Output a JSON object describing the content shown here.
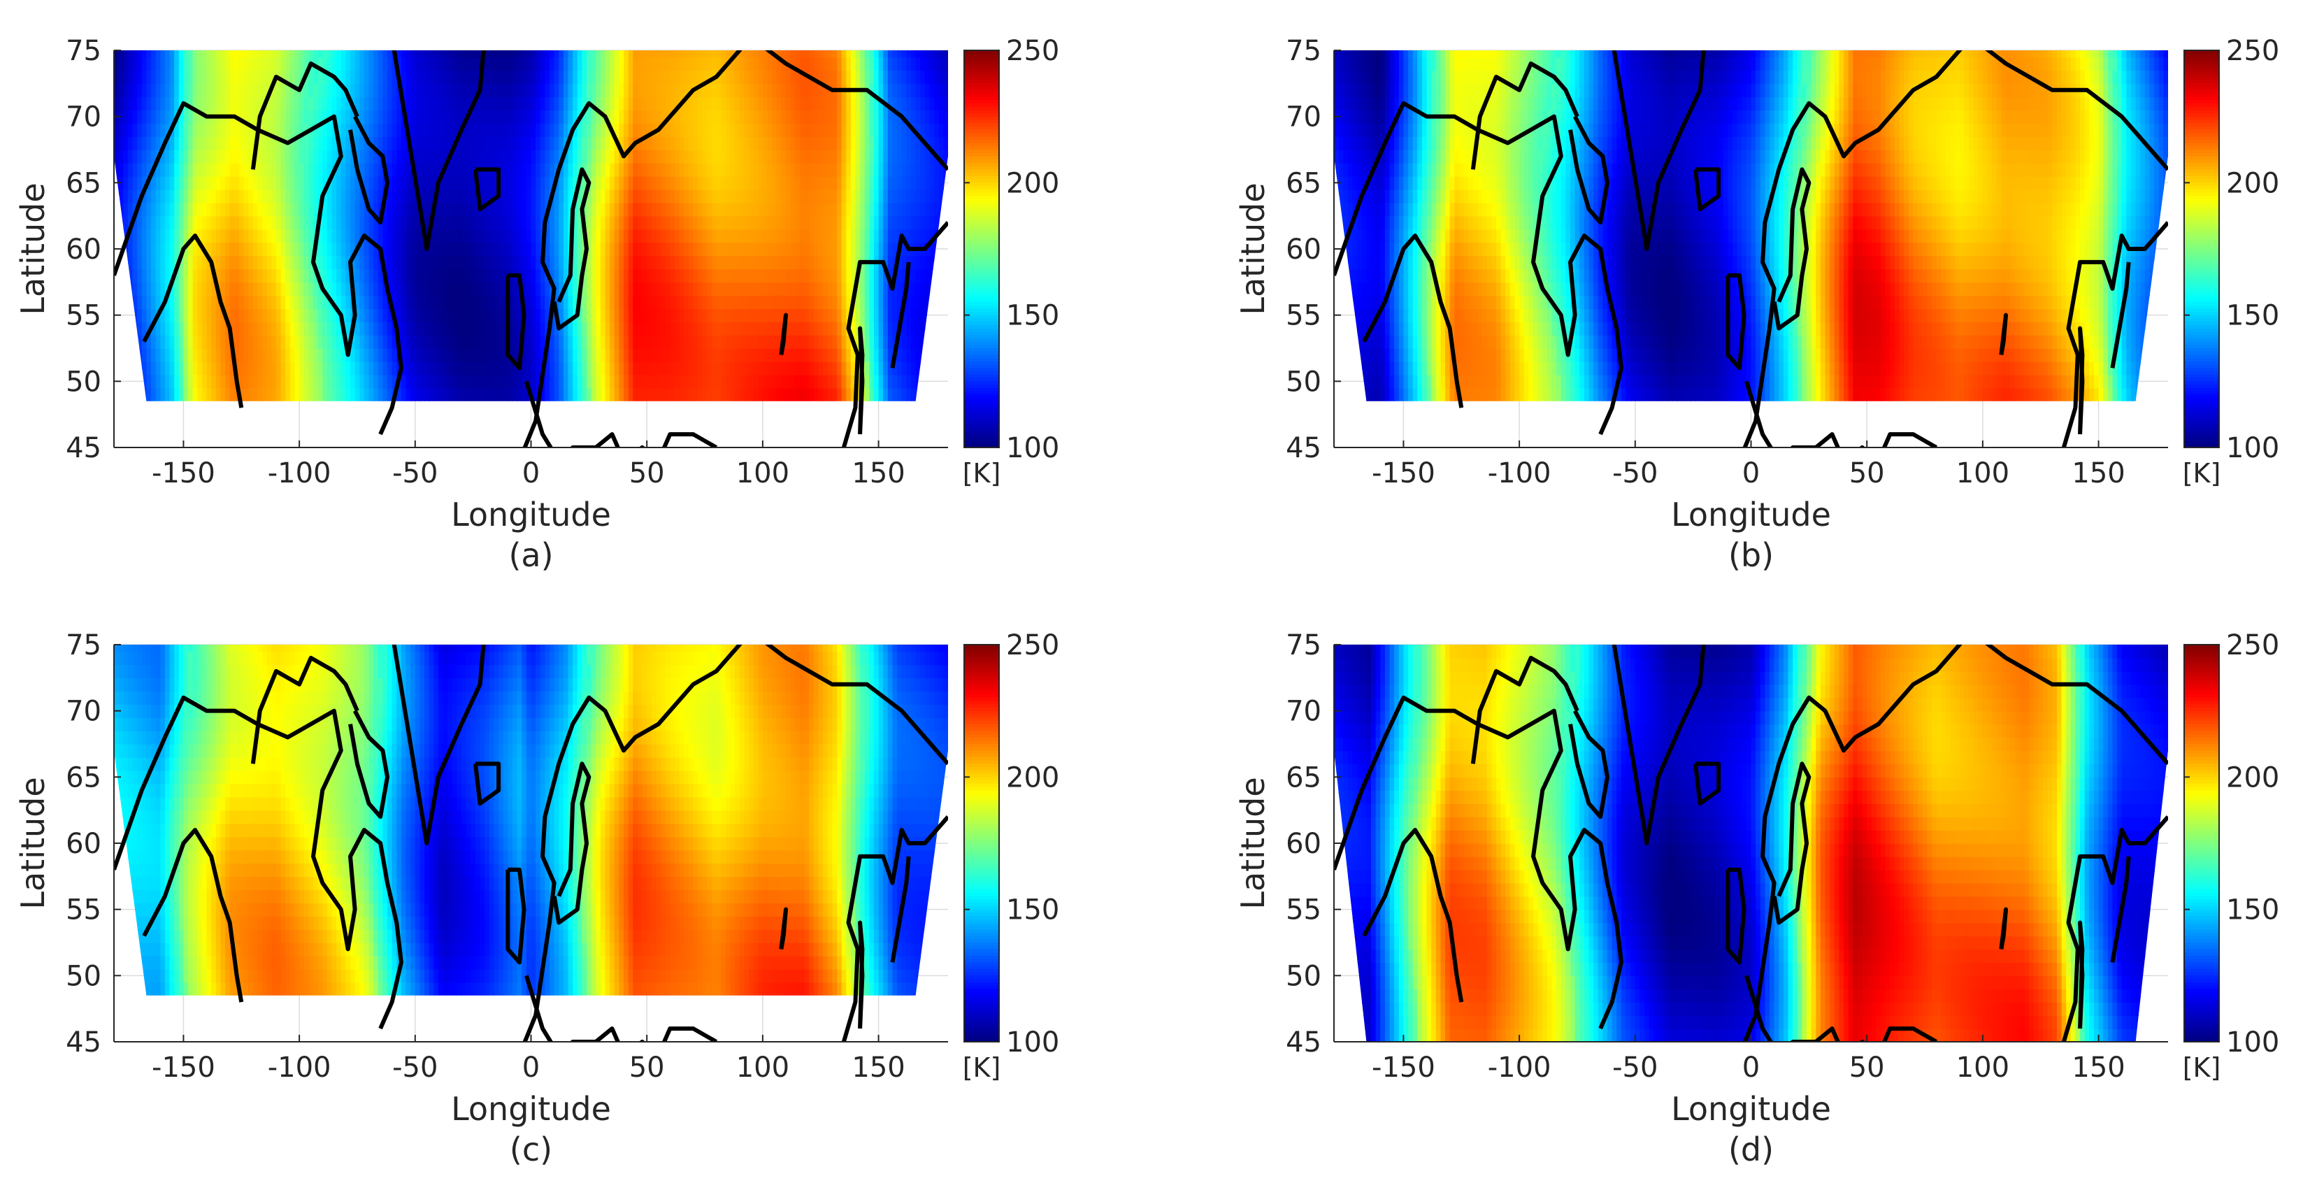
{
  "colors": {
    "colormap": "jet",
    "coastline": "#000000",
    "axis": "#262626",
    "grid": "#dcdcdc",
    "background": "#ffffff"
  },
  "chart_data": [
    {
      "type": "heatmap",
      "panel_label": "(a)",
      "xlabel": "Longitude",
      "ylabel": "Latitude",
      "xlim": [
        -180,
        180
      ],
      "ylim": [
        45,
        75
      ],
      "xticks": [
        -150,
        -100,
        -50,
        0,
        50,
        100,
        150
      ],
      "yticks": [
        45,
        50,
        55,
        60,
        65,
        70,
        75
      ],
      "colorbar": {
        "min": 100,
        "max": 250,
        "ticks": [
          100,
          150,
          200,
          250
        ],
        "unit": "[K]"
      },
      "grid": true,
      "data_lat_min": 48.5,
      "profile": {
        "lon": [
          -180,
          -155,
          -145,
          -128,
          -110,
          -95,
          -80,
          -62,
          -50,
          -30,
          -10,
          0,
          12,
          28,
          45,
          60,
          80,
          100,
          118,
          132,
          142,
          155,
          180
        ],
        "value": [
          110,
          150,
          190,
          205,
          195,
          170,
          150,
          125,
          110,
          105,
          108,
          115,
          135,
          185,
          222,
          218,
          210,
          215,
          220,
          215,
          185,
          130,
          115
        ]
      }
    },
    {
      "type": "heatmap",
      "panel_label": "(b)",
      "xlabel": "Longitude",
      "ylabel": "Latitude",
      "xlim": [
        -180,
        180
      ],
      "ylim": [
        45,
        75
      ],
      "xticks": [
        -150,
        -100,
        -50,
        0,
        50,
        100,
        150
      ],
      "yticks": [
        45,
        50,
        55,
        60,
        65,
        70,
        75
      ],
      "colorbar": {
        "min": 100,
        "max": 250,
        "ticks": [
          100,
          150,
          200,
          250
        ],
        "unit": "[K]"
      },
      "grid": true,
      "data_lat_min": 48.5,
      "profile": {
        "lon": [
          -180,
          -160,
          -145,
          -128,
          -110,
          -95,
          -80,
          -65,
          -52,
          -35,
          -15,
          0,
          15,
          30,
          45,
          55,
          70,
          90,
          110,
          128,
          140,
          150,
          162,
          180
        ],
        "value": [
          120,
          110,
          150,
          205,
          200,
          180,
          160,
          130,
          110,
          105,
          112,
          125,
          155,
          195,
          228,
          225,
          212,
          205,
          212,
          208,
          200,
          190,
          150,
          125
        ]
      }
    },
    {
      "type": "heatmap",
      "panel_label": "(c)",
      "xlabel": "Longitude",
      "ylabel": "Latitude",
      "xlim": [
        -180,
        180
      ],
      "ylim": [
        45,
        75
      ],
      "xticks": [
        -150,
        -100,
        -50,
        0,
        50,
        100,
        150
      ],
      "yticks": [
        45,
        50,
        55,
        60,
        65,
        70,
        75
      ],
      "colorbar": {
        "min": 100,
        "max": 250,
        "ticks": [
          100,
          150,
          200,
          250
        ],
        "unit": "[K]"
      },
      "grid": true,
      "data_lat_min": 48.5,
      "profile": {
        "lon": [
          -180,
          -160,
          -148,
          -130,
          -110,
          -90,
          -72,
          -55,
          -38,
          -20,
          -5,
          0,
          15,
          30,
          45,
          60,
          80,
          100,
          118,
          132,
          145,
          158,
          180
        ],
        "value": [
          150,
          145,
          175,
          200,
          205,
          195,
          180,
          140,
          115,
          125,
          140,
          130,
          150,
          190,
          215,
          208,
          200,
          212,
          215,
          200,
          160,
          130,
          125
        ]
      }
    },
    {
      "type": "heatmap",
      "panel_label": "(d)",
      "xlabel": "Longitude",
      "ylabel": "Latitude",
      "xlim": [
        -180,
        180
      ],
      "ylim": [
        45,
        75
      ],
      "xticks": [
        -150,
        -100,
        -50,
        0,
        50,
        100,
        150
      ],
      "yticks": [
        45,
        50,
        55,
        60,
        65,
        70,
        75
      ],
      "colorbar": {
        "min": 100,
        "max": 250,
        "ticks": [
          100,
          150,
          200,
          250
        ],
        "unit": "[K]"
      },
      "grid": true,
      "data_lat_min": 45,
      "profile": {
        "lon": [
          -180,
          -165,
          -150,
          -130,
          -115,
          -100,
          -85,
          -70,
          -55,
          -35,
          -15,
          0,
          15,
          30,
          45,
          60,
          80,
          100,
          118,
          132,
          145,
          160,
          180
        ],
        "value": [
          120,
          115,
          160,
          212,
          210,
          195,
          180,
          150,
          120,
          105,
          108,
          115,
          150,
          210,
          232,
          222,
          210,
          213,
          215,
          205,
          150,
          120,
          115
        ]
      }
    }
  ]
}
